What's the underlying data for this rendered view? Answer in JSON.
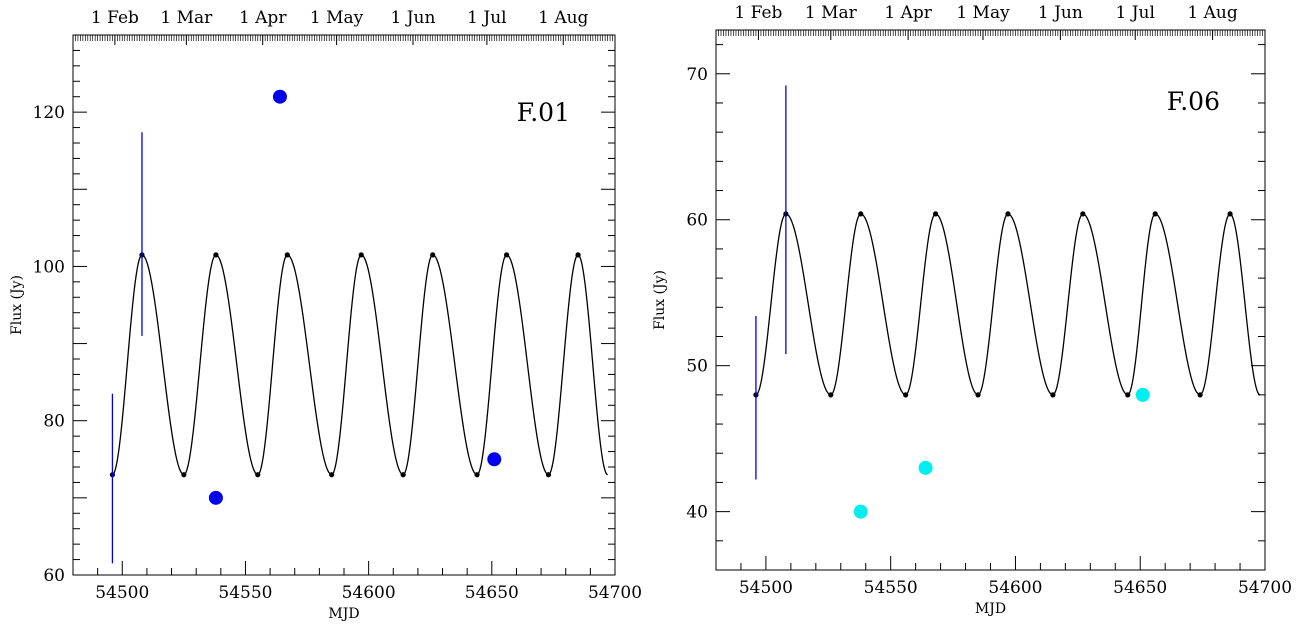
{
  "chart_data": [
    {
      "type": "scatter",
      "panel_label": "F.01",
      "xlabel": "MJD",
      "ylabel": "Flux (Jy)",
      "xlim": [
        54480,
        54700
      ],
      "ylim": [
        60,
        130
      ],
      "x_ticks": [
        54500,
        54550,
        54600,
        54650,
        54700
      ],
      "y_ticks": [
        60,
        80,
        100,
        120
      ],
      "top_axis": {
        "type": "date",
        "labels": [
          {
            "label": "1 Feb",
            "mjd": 54497
          },
          {
            "label": "1 Mar",
            "mjd": 54526
          },
          {
            "label": "1 Apr",
            "mjd": 54557
          },
          {
            "label": "1 May",
            "mjd": 54587
          },
          {
            "label": "1 Jun",
            "mjd": 54618
          },
          {
            "label": "1 Jul",
            "mjd": 54648
          },
          {
            "label": "1 Aug",
            "mjd": 54679
          }
        ]
      },
      "model_curve": {
        "color": "#000000",
        "min": 73,
        "max": 101.5,
        "maxima_mjd": [
          54508,
          54538,
          54567,
          54597,
          54626,
          54656,
          54685
        ],
        "minima_mjd": [
          54496,
          54525,
          54555,
          54585,
          54614,
          54644,
          54673
        ]
      },
      "series": [
        {
          "marker": "circle",
          "color": "#0000ee",
          "points": [
            {
              "x": 54538,
              "y": 70,
              "err": 0.8
            },
            {
              "x": 54564,
              "y": 122,
              "err": 0.8
            },
            {
              "x": 54651,
              "y": 75,
              "err": 0.5
            }
          ]
        },
        {
          "marker": "errorbar-only",
          "color": "#0000ee",
          "points": [
            {
              "x": 54496,
              "y": 72.5,
              "err": 11
            },
            {
              "x": 54508,
              "y": 104.2,
              "err": 13.2
            }
          ]
        }
      ]
    },
    {
      "type": "scatter",
      "panel_label": "F.06",
      "xlabel": "MJD",
      "ylabel": "Flux (Jy)",
      "xlim": [
        54480,
        54700
      ],
      "ylim": [
        36,
        73
      ],
      "x_ticks": [
        54500,
        54550,
        54600,
        54650,
        54700
      ],
      "y_ticks": [
        40,
        50,
        60,
        70
      ],
      "top_axis": {
        "type": "date",
        "labels": [
          {
            "label": "1 Feb",
            "mjd": 54497
          },
          {
            "label": "1 Mar",
            "mjd": 54526
          },
          {
            "label": "1 Apr",
            "mjd": 54557
          },
          {
            "label": "1 May",
            "mjd": 54587
          },
          {
            "label": "1 Jun",
            "mjd": 54618
          },
          {
            "label": "1 Jul",
            "mjd": 54648
          },
          {
            "label": "1 Aug",
            "mjd": 54679
          }
        ]
      },
      "model_curve": {
        "color": "#000000",
        "min": 48,
        "max": 60.4,
        "maxima_mjd": [
          54508,
          54538,
          54568,
          54597,
          54627,
          54656,
          54686
        ],
        "minima_mjd": [
          54496,
          54526,
          54556,
          54585,
          54615,
          54645,
          54674
        ]
      },
      "series": [
        {
          "marker": "circle",
          "color": "#00eeee",
          "points": [
            {
              "x": 54538,
              "y": 40,
              "err": 0.4
            },
            {
              "x": 54564,
              "y": 43,
              "err": 0.5
            },
            {
              "x": 54651,
              "y": 48,
              "err": 0.3
            }
          ]
        },
        {
          "marker": "errorbar-only",
          "color": "#0000ee",
          "points": [
            {
              "x": 54496,
              "y": 47.8,
              "err": 5.6
            },
            {
              "x": 54508,
              "y": 60.0,
              "err": 9.2
            }
          ]
        }
      ]
    }
  ]
}
